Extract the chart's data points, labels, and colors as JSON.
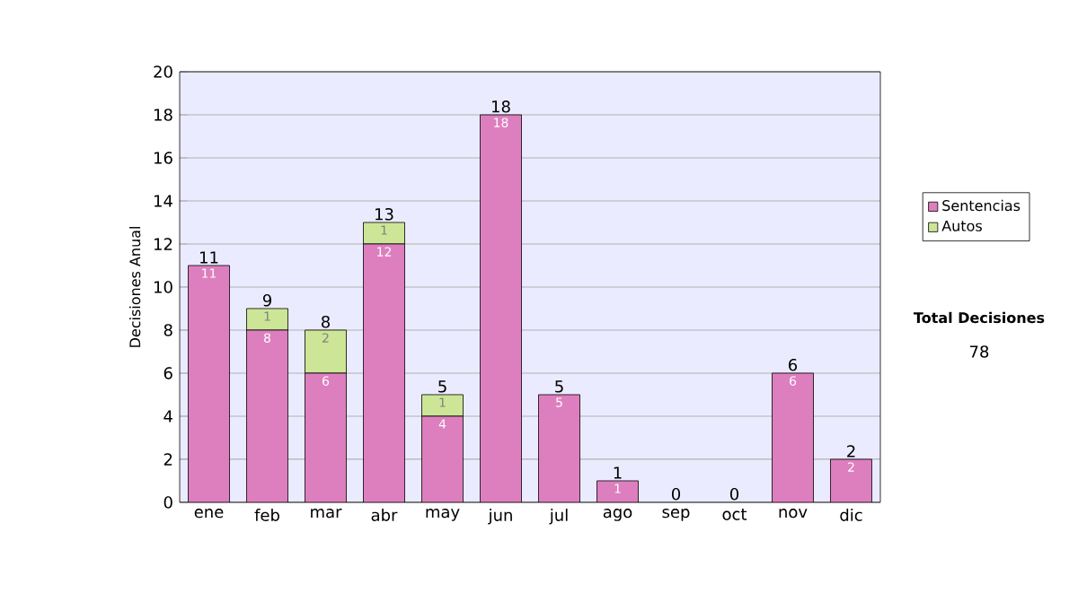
{
  "chart_data": {
    "type": "bar",
    "stacked": true,
    "ylabel": "Decisiones Anual",
    "categories": [
      "ene",
      "feb",
      "mar",
      "abr",
      "may",
      "jun",
      "jul",
      "ago",
      "sep",
      "oct",
      "nov",
      "dic"
    ],
    "series": [
      {
        "name": "Sentencias",
        "color": "#dd7fbf",
        "values": [
          11,
          8,
          6,
          12,
          4,
          18,
          5,
          1,
          0,
          0,
          6,
          2
        ],
        "value_labels": [
          "11",
          "8",
          "6",
          "12",
          "4",
          "18",
          "5",
          "1",
          null,
          null,
          "6",
          "2"
        ]
      },
      {
        "name": "Autos",
        "color": "#cde597",
        "values": [
          0,
          1,
          2,
          1,
          1,
          0,
          0,
          0,
          0,
          0,
          0,
          0
        ],
        "value_labels": [
          null,
          "1",
          "2",
          "1",
          "1",
          null,
          null,
          null,
          null,
          null,
          null,
          null
        ]
      }
    ],
    "totals": [
      "11",
      "9",
      "8",
      "13",
      "5",
      "18",
      "5",
      "1",
      "0",
      "0",
      "6",
      "2"
    ],
    "ylim": [
      0,
      20
    ],
    "yticks": [
      0,
      2,
      4,
      6,
      8,
      10,
      12,
      14,
      16,
      18,
      20
    ],
    "grid": "y",
    "legend": "right",
    "annotations": [
      "Total Decisiones",
      "78"
    ]
  }
}
